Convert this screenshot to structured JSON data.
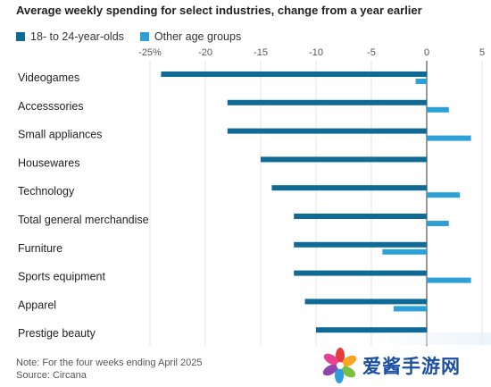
{
  "header": {
    "title": "Average weekly spending for select industries, change from a year earlier"
  },
  "legend": [
    {
      "label": "18- to 24-year-olds",
      "color": "#0f6a96"
    },
    {
      "label": "Other age groups",
      "color": "#2ea0d8"
    }
  ],
  "chart_data": {
    "type": "bar",
    "orientation": "horizontal",
    "title": "Average weekly spending for select industries, change from a year earlier",
    "xlim": [
      -25,
      5
    ],
    "xticks": [
      -25,
      -20,
      -15,
      -10,
      -5,
      0,
      5
    ],
    "xtick_labels": [
      "-25%",
      "-20",
      "-15",
      "-10",
      "-5",
      "0",
      "5"
    ],
    "grid": true,
    "legend_position": "top-left",
    "categories": [
      "Videogames",
      "Accesssories",
      "Small appliances",
      "Housewares",
      "Technology",
      "Total general merchandise",
      "Furniture",
      "Sports equipment",
      "Apparel",
      "Prestige beauty"
    ],
    "series": [
      {
        "name": "18- to 24-year-olds",
        "color": "#0f6a96",
        "values": [
          -24,
          -18,
          -18,
          -15,
          -14,
          -12,
          -12,
          -12,
          -11,
          -10
        ]
      },
      {
        "name": "Other age groups",
        "color": "#2ea0d8",
        "values": [
          -1,
          2,
          4,
          0,
          3,
          2,
          -4,
          4,
          -3,
          0
        ]
      }
    ]
  },
  "footer": {
    "note": "Note: For the four weeks ending April 2025",
    "source": "Source: Circana"
  },
  "watermark": {
    "text": "爱酱手游网"
  }
}
